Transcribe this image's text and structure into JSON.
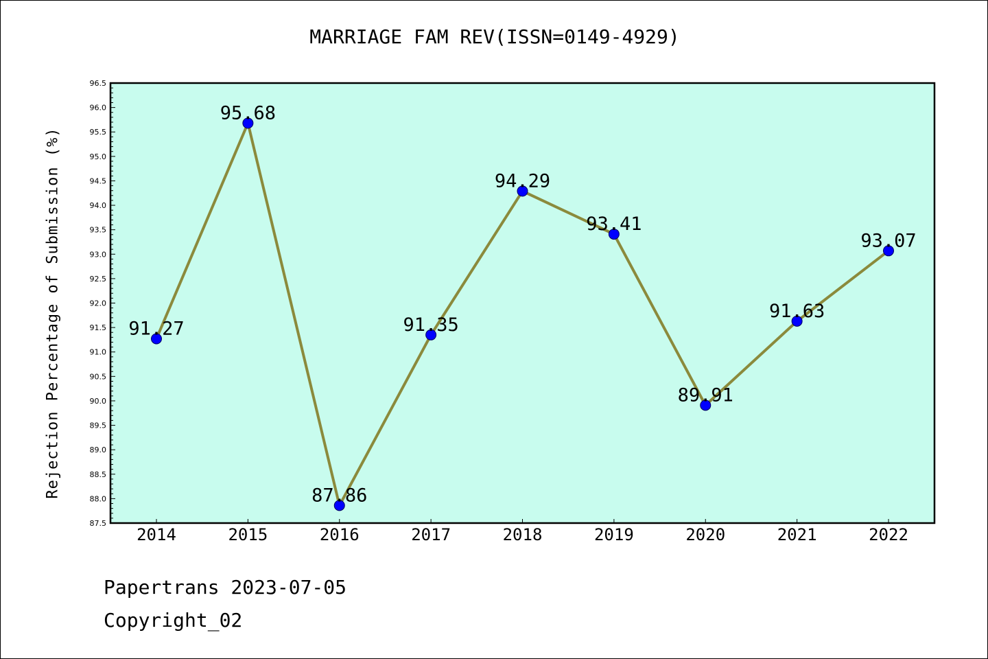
{
  "footer": {
    "line1": "Papertrans 2023-07-05",
    "line2": "Copyright_02"
  },
  "chart_data": {
    "type": "line",
    "title": "MARRIAGE FAM REV(ISSN=0149-4929)",
    "xlabel": "",
    "ylabel": "Rejection Percentage of Submission (%)",
    "categories": [
      "2014",
      "2015",
      "2016",
      "2017",
      "2018",
      "2019",
      "2020",
      "2021",
      "2022"
    ],
    "series": [
      {
        "values": [
          91.27,
          95.68,
          87.86,
          91.35,
          94.29,
          93.41,
          89.91,
          91.63,
          93.07
        ],
        "labels": [
          "91.27",
          "95.68",
          "87.86",
          "91.35",
          "94.29",
          "93.41",
          "89.91",
          "91.63",
          "93.07"
        ]
      }
    ],
    "ylim": [
      87.5,
      96.5
    ],
    "yticks": [
      "87.5",
      "88.0",
      "88.5",
      "89.0",
      "89.5",
      "90.0",
      "90.5",
      "91.0",
      "91.5",
      "92.0",
      "92.5",
      "93.0",
      "93.5",
      "94.0",
      "94.5",
      "95.0",
      "95.5",
      "96.0",
      "96.5"
    ],
    "grid": false,
    "colors": {
      "plot_background": "#c8fcee",
      "line": "#8b8a3c",
      "marker": "#0000ff"
    }
  }
}
